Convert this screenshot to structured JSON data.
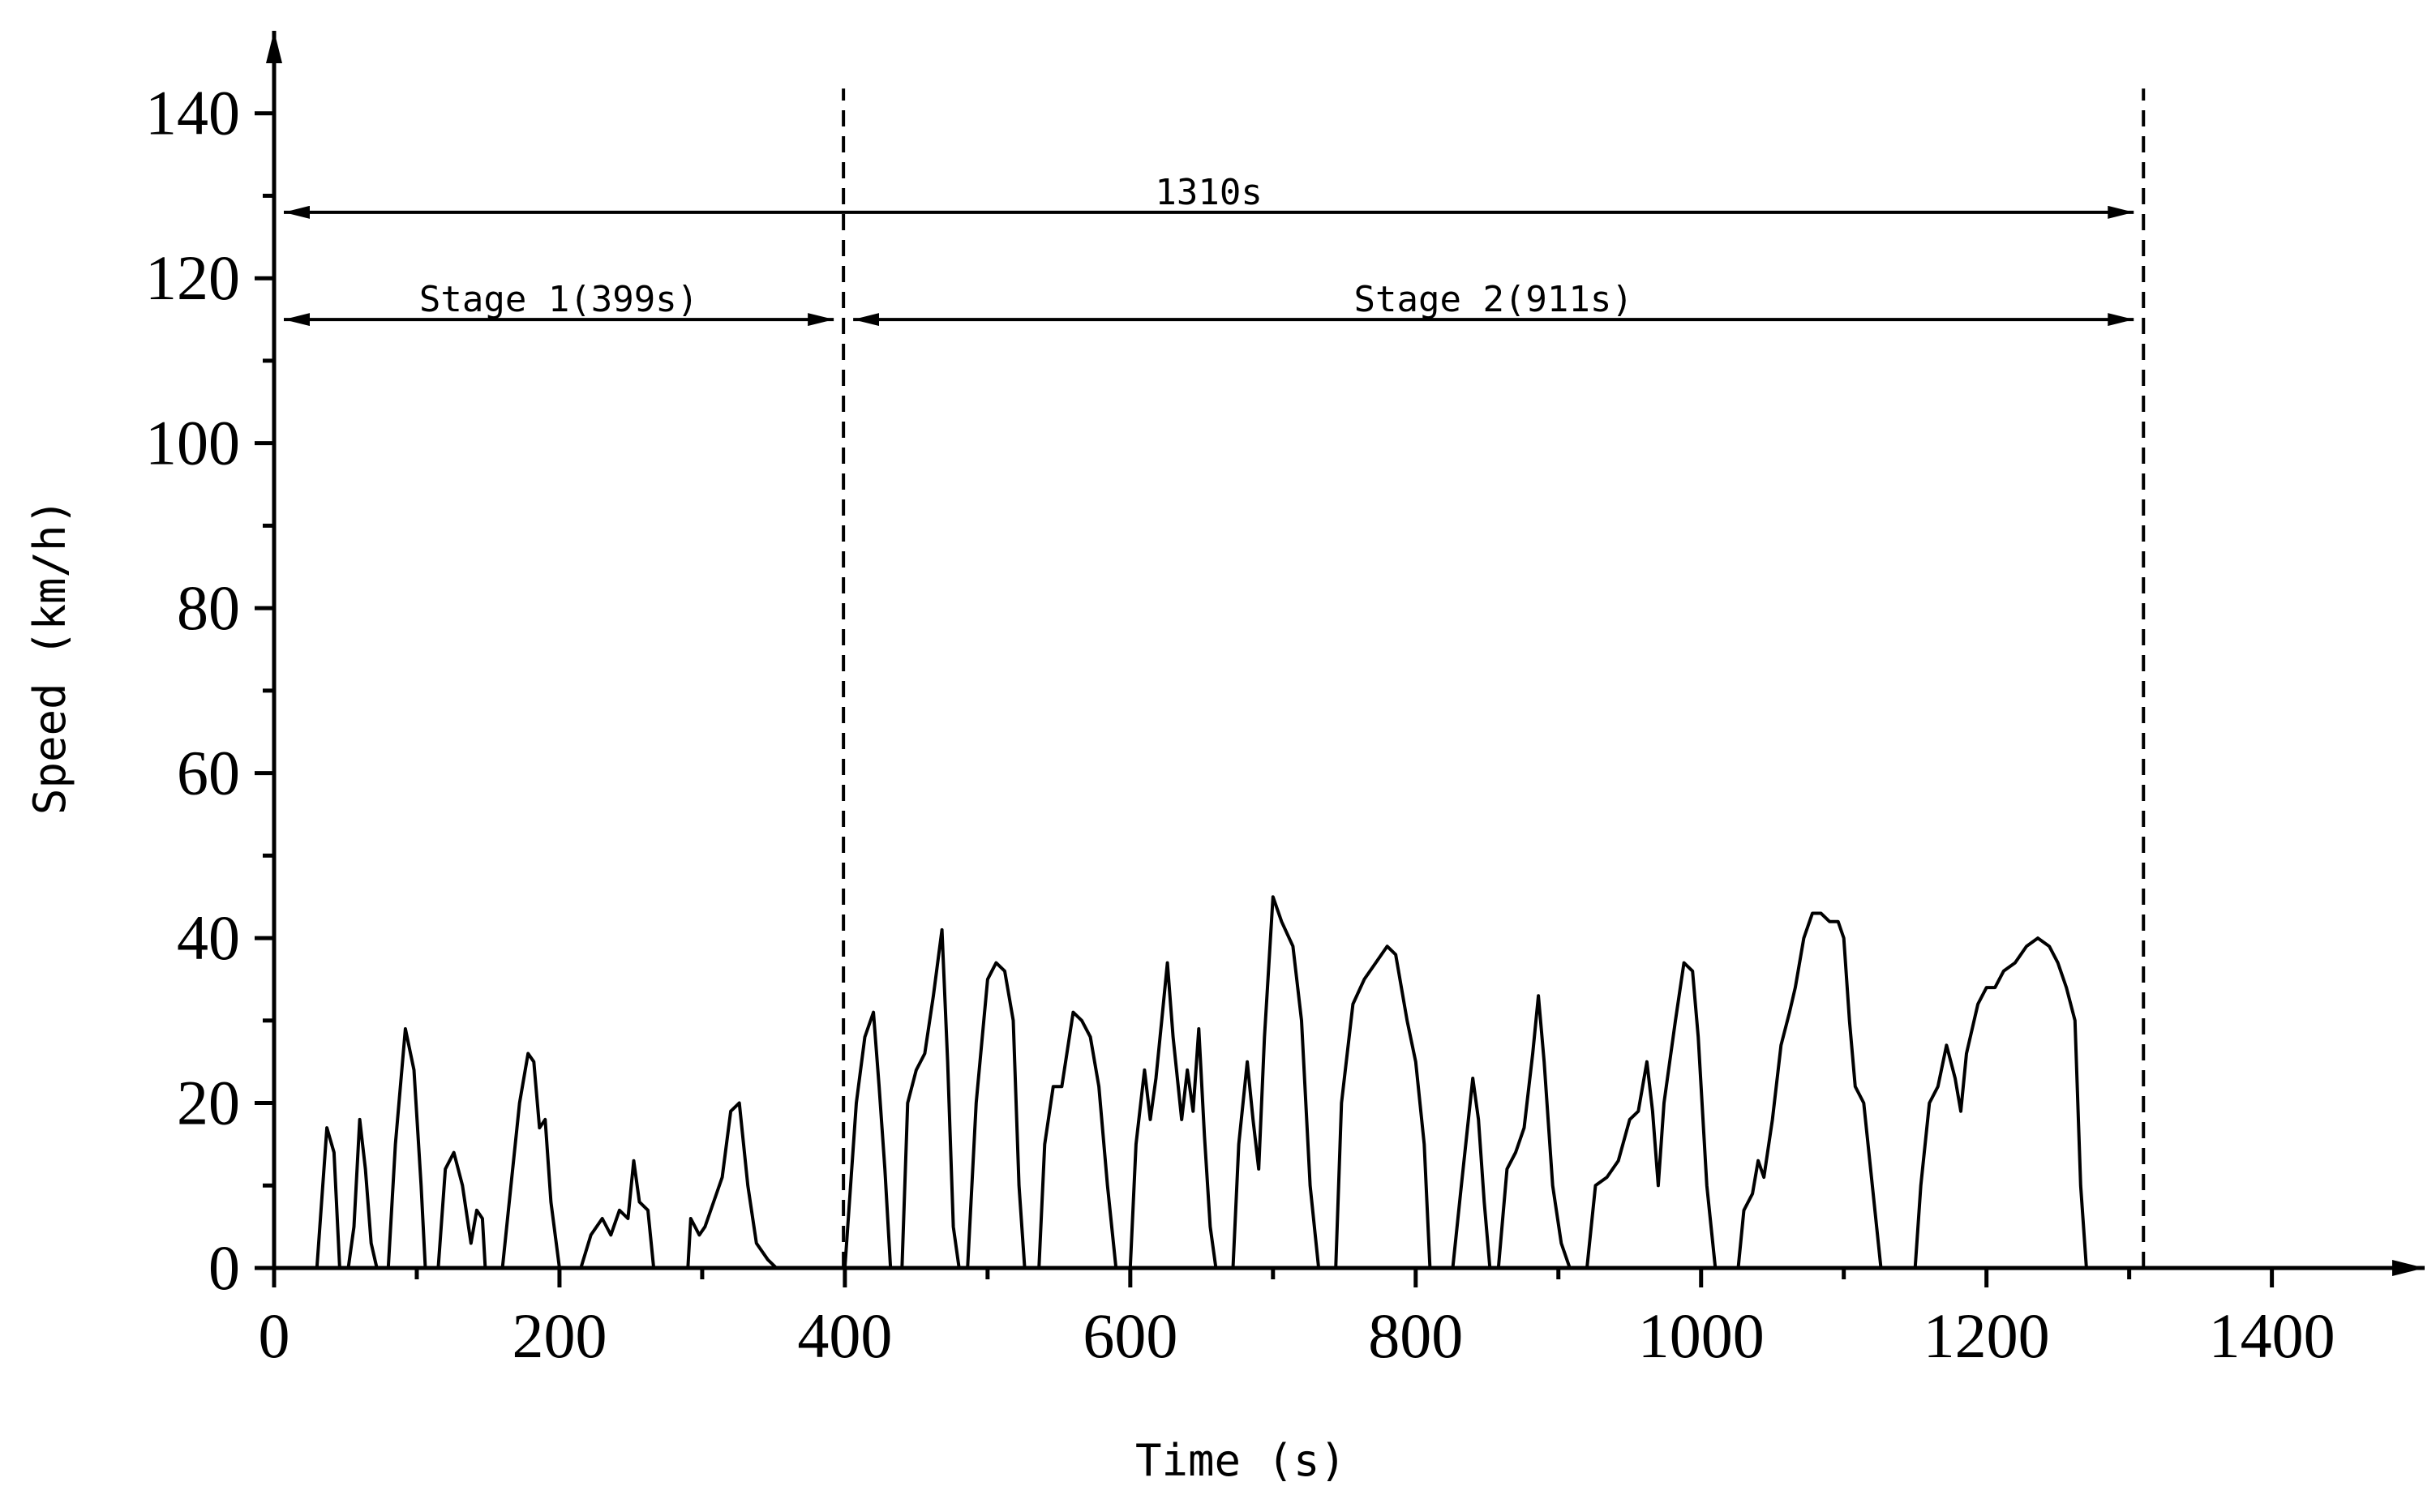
{
  "chart_data": {
    "type": "line",
    "x_label": "Time (s)",
    "y_label": "Speed (km/h)",
    "xlim": [
      0,
      1490
    ],
    "ylim": [
      0,
      150
    ],
    "xticks": [
      0,
      200,
      400,
      600,
      800,
      1000,
      1200,
      1400
    ],
    "yticks": [
      0,
      20,
      40,
      60,
      80,
      100,
      120,
      140
    ],
    "xminorticks": [
      100,
      300,
      500,
      700,
      900,
      1100,
      1300
    ],
    "yminorticks": [
      10,
      30,
      50,
      70,
      90,
      110,
      130
    ],
    "color": "#000000",
    "x": [
      30,
      37,
      42,
      46,
      52,
      56,
      60,
      64,
      68,
      72,
      80,
      85,
      92,
      98,
      103,
      106,
      115,
      120,
      126,
      132,
      138,
      142,
      146,
      148,
      160,
      166,
      172,
      178,
      182,
      186,
      190,
      194,
      200,
      215,
      222,
      230,
      236,
      242,
      248,
      252,
      256,
      262,
      266,
      290,
      292,
      298,
      302,
      308,
      314,
      320,
      326,
      332,
      338,
      346,
      352,
      356,
      400,
      402,
      408,
      414,
      420,
      424,
      428,
      432,
      440,
      444,
      450,
      456,
      462,
      468,
      472,
      476,
      480,
      486,
      492,
      500,
      506,
      512,
      518,
      522,
      526,
      536,
      540,
      546,
      552,
      560,
      566,
      572,
      578,
      584,
      590,
      600,
      604,
      610,
      614,
      618,
      622,
      626,
      630,
      636,
      640,
      644,
      648,
      652,
      656,
      660,
      672,
      676,
      682,
      686,
      690,
      694,
      700,
      706,
      714,
      720,
      726,
      732,
      744,
      748,
      756,
      764,
      772,
      780,
      786,
      794,
      800,
      806,
      810,
      826,
      832,
      840,
      844,
      848,
      852,
      858,
      864,
      870,
      876,
      882,
      886,
      890,
      896,
      902,
      908,
      920,
      926,
      934,
      942,
      950,
      956,
      962,
      966,
      970,
      974,
      982,
      988,
      994,
      998,
      1004,
      1010,
      1026,
      1030,
      1036,
      1040,
      1044,
      1050,
      1056,
      1062,
      1066,
      1072,
      1078,
      1084,
      1090,
      1096,
      1100,
      1104,
      1108,
      1114,
      1120,
      1126,
      1150,
      1154,
      1160,
      1166,
      1172,
      1178,
      1182,
      1186,
      1194,
      1200,
      1206,
      1212,
      1220,
      1228,
      1236,
      1244,
      1250,
      1256,
      1262,
      1266,
      1270
    ],
    "values": [
      0,
      17,
      14,
      0,
      0,
      5,
      18,
      12,
      3,
      0,
      0,
      15,
      29,
      24,
      10,
      0,
      0,
      12,
      14,
      10,
      3,
      7,
      6,
      0,
      0,
      10,
      20,
      26,
      25,
      17,
      18,
      8,
      0,
      0,
      4,
      6,
      4,
      7,
      6,
      13,
      8,
      7,
      0,
      0,
      6,
      4,
      5,
      8,
      11,
      19,
      20,
      10,
      3,
      1,
      0,
      0,
      0,
      5,
      20,
      28,
      31,
      22,
      12,
      0,
      0,
      20,
      24,
      26,
      33,
      41,
      25,
      5,
      0,
      0,
      20,
      35,
      37,
      36,
      30,
      10,
      0,
      0,
      15,
      22,
      22,
      31,
      30,
      28,
      22,
      10,
      0,
      0,
      15,
      24,
      18,
      23,
      30,
      37,
      28,
      18,
      24,
      19,
      29,
      16,
      5,
      0,
      0,
      15,
      25,
      18,
      12,
      28,
      45,
      42,
      39,
      30,
      10,
      0,
      0,
      20,
      32,
      35,
      37,
      39,
      38,
      30,
      25,
      15,
      0,
      0,
      10,
      23,
      18,
      8,
      0,
      0,
      12,
      14,
      17,
      26,
      33,
      25,
      10,
      3,
      0,
      0,
      10,
      11,
      13,
      18,
      19,
      25,
      19,
      10,
      20,
      30,
      37,
      36,
      28,
      10,
      0,
      0,
      7,
      9,
      13,
      11,
      18,
      27,
      31,
      34,
      40,
      43,
      43,
      42,
      42,
      40,
      30,
      22,
      20,
      10,
      0,
      0,
      10,
      20,
      22,
      27,
      23,
      19,
      26,
      32,
      34,
      34,
      36,
      37,
      39,
      40,
      39,
      37,
      34,
      30,
      10,
      0
    ],
    "vlines": [
      399,
      1310
    ],
    "spans": [
      {
        "label": "1310s",
        "start": 0,
        "end": 1310,
        "y": 128
      },
      {
        "label": "Stage 1(399s)",
        "start": 0,
        "end": 399,
        "y": 115
      },
      {
        "label": "Stage 2(911s)",
        "start": 399,
        "end": 1310,
        "y": 115
      }
    ]
  }
}
